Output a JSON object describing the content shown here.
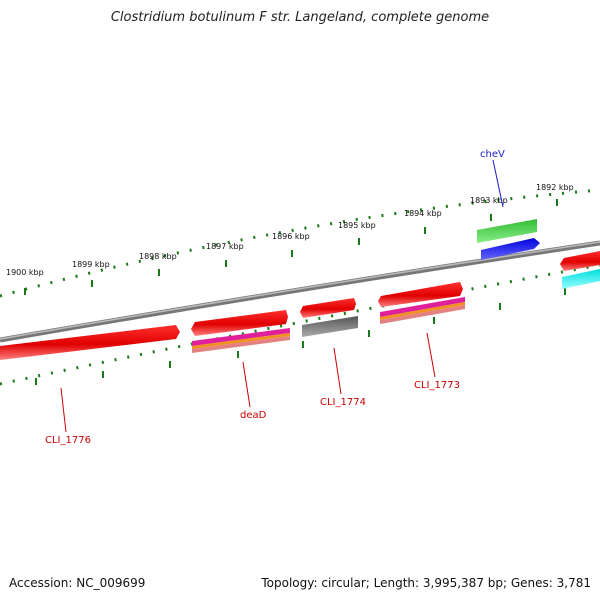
{
  "title": "Clostridium botulinum F str. Langeland, complete genome",
  "footer": {
    "accession": "Accession: NC_009699",
    "summary": "Topology: circular; Length: 3,995,387 bp; Genes: 3,781"
  },
  "ruler": {
    "tick_labels": [
      "1900 kbp",
      "1899 kbp",
      "1898 kbp",
      "1897 kbp",
      "1896 kbp",
      "1895 kbp",
      "1894 kbp",
      "1893 kbp",
      "1892 kbp"
    ]
  },
  "genes": [
    {
      "name": "CLI_1776",
      "color": "#d00000"
    },
    {
      "name": "deaD",
      "color": "#d00000"
    },
    {
      "name": "CLI_1774",
      "color": "#d00000"
    },
    {
      "name": "CLI_1773",
      "color": "#d00000"
    },
    {
      "name": "cheV",
      "color": "#1a1acc"
    }
  ],
  "colors": {
    "backbone": "#808080",
    "tick": "#1a7a1a",
    "cds_red": "#e00000",
    "cds_green": "#33bb33",
    "cds_blue": "#0000dd",
    "cds_cyan": "#00e5e5",
    "cds_gray": "#606060",
    "stripe_magenta": "#e0209a",
    "stripe_orange": "#f09020",
    "stripe_salmon": "#e58080"
  }
}
